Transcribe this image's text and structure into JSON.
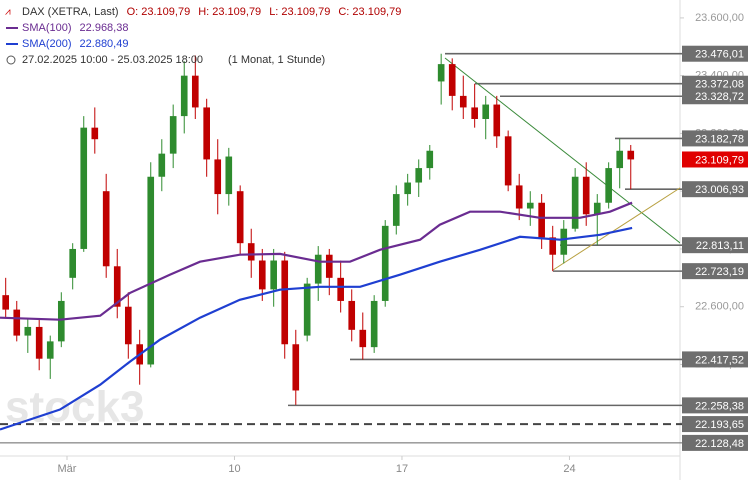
{
  "chart_data": {
    "type": "candlestick",
    "header": {
      "title": "DAX (XETRA, Last)",
      "ohlc": [
        "O: 23.109,79",
        "H: 23.109,79",
        "L: 23.109,79",
        "C: 23.109,79"
      ],
      "range": "27.02.2025 10:00 - 25.03.2025 18:00",
      "interval": "(1 Monat, 1 Stunde)"
    },
    "watermark": "stock3",
    "up_color": "#2e8b2e",
    "down_color": "#c00000",
    "xlim": [
      0,
      20.3
    ],
    "xticks": [
      {
        "value": 2,
        "label": "Mär"
      },
      {
        "value": 7,
        "label": "10"
      },
      {
        "value": 12,
        "label": "17"
      },
      {
        "value": 17,
        "label": "24"
      }
    ],
    "ylim": [
      22000,
      23662
    ],
    "yticks": [
      {
        "value": 23600,
        "label": "23.600,00"
      },
      {
        "value": 23400,
        "label": "23.400,00"
      },
      {
        "value": 23200,
        "label": "23.200,00"
      },
      {
        "value": 23000,
        "label": "23.000,00"
      },
      {
        "value": 22800,
        "label": "22.800,00"
      },
      {
        "value": 22600,
        "label": "22.600,00"
      },
      {
        "value": 22400,
        "label": "22.400,00"
      },
      {
        "value": 22200,
        "label": "22.200,00"
      }
    ],
    "x": [
      0.17,
      0.5,
      0.83,
      1.17,
      1.5,
      1.83,
      2.17,
      2.5,
      2.83,
      3.17,
      3.5,
      3.83,
      4.17,
      4.5,
      4.83,
      5.17,
      5.5,
      5.83,
      6.17,
      6.5,
      6.83,
      7.17,
      7.5,
      7.83,
      8.17,
      8.5,
      8.83,
      9.17,
      9.5,
      9.83,
      10.17,
      10.5,
      10.83,
      11.17,
      11.5,
      11.83,
      12.17,
      12.5,
      12.83,
      13.17,
      13.5,
      13.83,
      14.17,
      14.5,
      14.83,
      15.17,
      15.5,
      15.83,
      16.17,
      16.5,
      16.83,
      17.17,
      17.5,
      17.83,
      18.17,
      18.5,
      18.83
    ],
    "open": [
      22640,
      22590,
      22500,
      22530,
      22420,
      22480,
      22700,
      22800,
      23220,
      23000,
      22740,
      22600,
      22470,
      22400,
      23050,
      23130,
      23260,
      23400,
      23290,
      23110,
      22990,
      23000,
      22820,
      22760,
      22660,
      22760,
      22470,
      22500,
      22680,
      22780,
      22700,
      22620,
      22520,
      22460,
      22620,
      22880,
      22990,
      23030,
      23080,
      23380,
      23440,
      23330,
      23290,
      23250,
      23300,
      23190,
      23020,
      22940,
      22960,
      22840,
      22780,
      22870,
      23050,
      22920,
      22960,
      23080,
      23140
    ],
    "high": [
      22700,
      22620,
      22560,
      22560,
      22500,
      22650,
      22820,
      23260,
      23290,
      23060,
      22800,
      22650,
      22520,
      23100,
      23180,
      23300,
      23450,
      23470,
      23320,
      23180,
      23150,
      23020,
      22870,
      22800,
      22800,
      22790,
      22520,
      22700,
      22810,
      22800,
      22760,
      22660,
      22580,
      22640,
      22900,
      23020,
      23060,
      23110,
      23160,
      23476,
      23460,
      23400,
      23372,
      23330,
      23330,
      23210,
      23060,
      23000,
      22990,
      22880,
      22900,
      23080,
      23100,
      22990,
      23100,
      23182,
      23160
    ],
    "low": [
      22560,
      22480,
      22440,
      22380,
      22350,
      22460,
      22660,
      22790,
      23130,
      22700,
      22560,
      22420,
      22330,
      22390,
      23000,
      23080,
      23200,
      23250,
      23050,
      22920,
      22950,
      22780,
      22700,
      22620,
      22600,
      22420,
      22260,
      22480,
      22620,
      22640,
      22580,
      22480,
      22417,
      22440,
      22600,
      22850,
      22950,
      22980,
      23040,
      23300,
      23280,
      23250,
      23220,
      23180,
      23150,
      23000,
      22900,
      22880,
      22800,
      22723,
      22750,
      22860,
      22880,
      22813,
      22940,
      23010,
      23007
    ],
    "close": [
      22590,
      22500,
      22530,
      22420,
      22480,
      22620,
      22800,
      23220,
      23180,
      22740,
      22600,
      22470,
      22400,
      23050,
      23130,
      23260,
      23400,
      23290,
      23110,
      22990,
      23120,
      22820,
      22760,
      22660,
      22760,
      22470,
      22310,
      22680,
      22780,
      22700,
      22620,
      22520,
      22460,
      22620,
      22880,
      22990,
      23030,
      23080,
      23140,
      23440,
      23330,
      23290,
      23250,
      23300,
      23190,
      23020,
      22940,
      22960,
      22840,
      22780,
      22870,
      23050,
      22920,
      22960,
      23080,
      23140,
      23110
    ],
    "series": [
      {
        "name": "SMA(100)",
        "value_label": "22.968,38",
        "color": "#6a2c91",
        "x": [
          0,
          1.79,
          2.99,
          3.88,
          5.07,
          5.97,
          7.16,
          8.36,
          9.55,
          10.45,
          11.34,
          12.54,
          13.13,
          14.03,
          14.93,
          16.12,
          17.31,
          18.21,
          18.87
        ],
        "values": [
          22562,
          22555,
          22569,
          22648,
          22711,
          22756,
          22780,
          22783,
          22756,
          22756,
          22797,
          22832,
          22884,
          22929,
          22929,
          22908,
          22908,
          22929,
          22960
        ]
      },
      {
        "name": "SMA(200)",
        "value_label": "22.880,49",
        "color": "#1f3fd1",
        "x": [
          0,
          1.79,
          2.99,
          3.88,
          4.78,
          5.97,
          7.16,
          8.36,
          9.55,
          10.75,
          11.94,
          13.13,
          14.33,
          15.52,
          16.72,
          17.91,
          18.87
        ],
        "values": [
          22175,
          22244,
          22330,
          22410,
          22486,
          22562,
          22624,
          22659,
          22669,
          22669,
          22711,
          22756,
          22797,
          22842,
          22832,
          22849,
          22873
        ]
      }
    ],
    "levels": [
      {
        "value": 23476.01,
        "label": "23.476,01"
      },
      {
        "value": 23372.08,
        "label": "23.372,08"
      },
      {
        "value": 23328.72,
        "label": "23.328,72"
      },
      {
        "value": 23182.78,
        "label": "23.182,78"
      },
      {
        "value": 23006.93,
        "label": "23.006,93"
      },
      {
        "value": 22813.11,
        "label": "22.813,11"
      },
      {
        "value": 22723.19,
        "label": "22.723,19"
      },
      {
        "value": 22417.52,
        "label": "22.417,52"
      },
      {
        "value": 22258.38,
        "label": "22.258,38"
      },
      {
        "value": 22193.65,
        "label": "22.193,65",
        "dashed": true
      },
      {
        "value": 22128.48,
        "label": "22.128,48"
      }
    ],
    "last": {
      "value": 23109.79,
      "label": "23.109,79",
      "color": "#e00000"
    }
  }
}
